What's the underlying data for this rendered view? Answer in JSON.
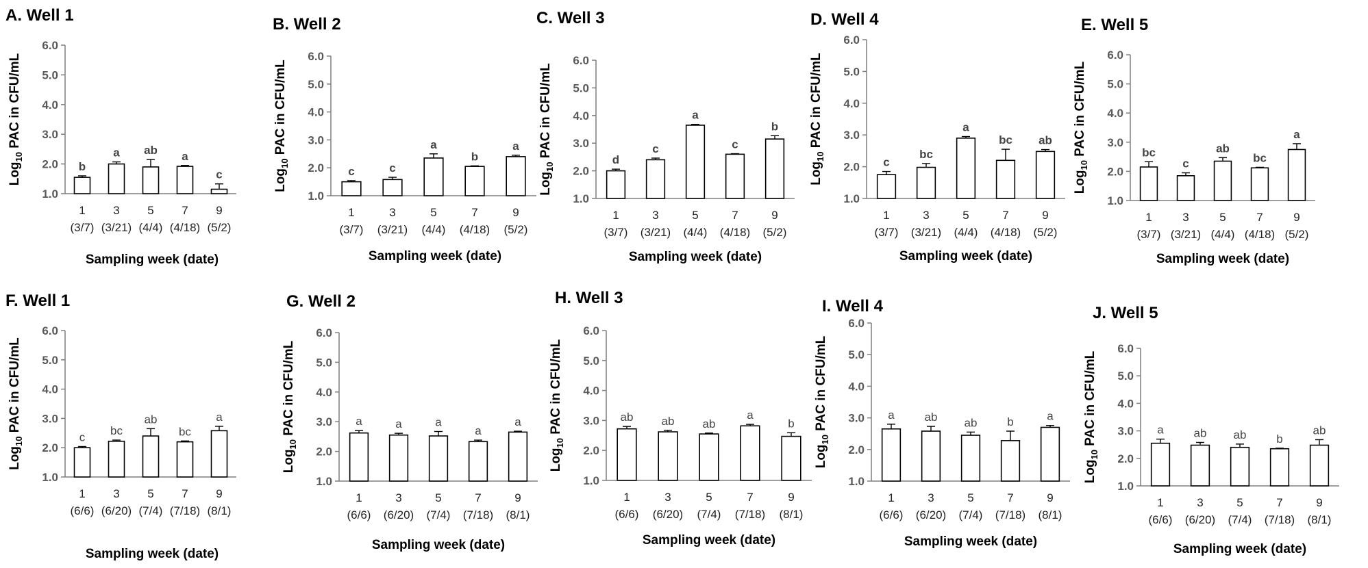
{
  "chart_data": [
    {
      "panel": "A",
      "title": "A. Well 1",
      "type": "bar",
      "categories": [
        "1",
        "3",
        "5",
        "7",
        "9"
      ],
      "dates": [
        "(3/7)",
        "(3/21)",
        "(4/4)",
        "(4/18)",
        "(5/2)"
      ],
      "values": [
        1.55,
        2.0,
        1.9,
        1.92,
        1.15
      ],
      "errors": [
        0.05,
        0.07,
        0.25,
        0.03,
        0.18
      ],
      "letters": [
        "b",
        "a",
        "ab",
        "a",
        "c"
      ],
      "xlabel": "Sampling week (date)",
      "ylabel": "Log10 PAC in CFU/mL",
      "ylim": [
        1.0,
        6.0
      ],
      "yticks": [
        "1.0",
        "2.0",
        "3.0",
        "4.0",
        "5.0",
        "6.0"
      ]
    },
    {
      "panel": "B",
      "title": "B. Well 2",
      "type": "bar",
      "categories": [
        "1",
        "3",
        "5",
        "7",
        "9"
      ],
      "dates": [
        "(3/7)",
        "(3/21)",
        "(4/4)",
        "(4/18)",
        "(5/2)"
      ],
      "values": [
        1.5,
        1.58,
        2.35,
        2.05,
        2.4
      ],
      "errors": [
        0.04,
        0.08,
        0.15,
        0.02,
        0.05
      ],
      "letters": [
        "c",
        "c",
        "a",
        "b",
        "a"
      ],
      "xlabel": "Sampling week (date)",
      "ylabel": "Log10 PAC in CFU/mL",
      "ylim": [
        1.0,
        6.0
      ],
      "yticks": [
        "1.0",
        "2.0",
        "3.0",
        "4.0",
        "5.0",
        "6.0"
      ]
    },
    {
      "panel": "C",
      "title": "C. Well 3",
      "type": "bar",
      "categories": [
        "1",
        "3",
        "5",
        "7",
        "9"
      ],
      "dates": [
        "(3/7)",
        "(3/21)",
        "(4/4)",
        "(4/18)",
        "(5/2)"
      ],
      "values": [
        2.0,
        2.4,
        3.65,
        2.6,
        3.15
      ],
      "errors": [
        0.06,
        0.06,
        0.03,
        0.02,
        0.12
      ],
      "letters": [
        "d",
        "c",
        "a",
        "c",
        "b"
      ],
      "xlabel": "Sampling week (date)",
      "ylabel": "Log10 PAC in CFU/mL",
      "ylim": [
        1.0,
        6.0
      ],
      "yticks": [
        "1.0",
        "2.0",
        "3.0",
        "4.0",
        "5.0",
        "6.0"
      ]
    },
    {
      "panel": "D",
      "title": "D. Well 4",
      "type": "bar",
      "categories": [
        "1",
        "3",
        "5",
        "7",
        "9"
      ],
      "dates": [
        "(3/7)",
        "(3/21)",
        "(4/4)",
        "(4/18)",
        "(5/2)"
      ],
      "values": [
        1.75,
        1.98,
        2.9,
        2.2,
        2.48
      ],
      "errors": [
        0.1,
        0.12,
        0.05,
        0.35,
        0.06
      ],
      "letters": [
        "c",
        "bc",
        "a",
        "bc",
        "ab"
      ],
      "xlabel": "Sampling week (date)",
      "ylabel": "Log10 PAC in CFU/mL",
      "ylim": [
        1.0,
        6.0
      ],
      "yticks": [
        "1.0",
        "2.0",
        "3.0",
        "4.0",
        "5.0",
        "6.0"
      ]
    },
    {
      "panel": "E",
      "title": "E. Well 5",
      "type": "bar",
      "categories": [
        "1",
        "3",
        "5",
        "7",
        "9"
      ],
      "dates": [
        "(3/7)",
        "(3/21)",
        "(4/4)",
        "(4/18)",
        "(5/2)"
      ],
      "values": [
        2.15,
        1.85,
        2.35,
        2.12,
        2.75
      ],
      "errors": [
        0.18,
        0.1,
        0.12,
        0.02,
        0.2
      ],
      "letters": [
        "bc",
        "c",
        "ab",
        "bc",
        "a"
      ],
      "xlabel": "Sampling week (date)",
      "ylabel": "Log10 PAC in CFU/mL",
      "ylim": [
        1.0,
        6.0
      ],
      "yticks": [
        "1.0",
        "2.0",
        "3.0",
        "4.0",
        "5.0",
        "6.0"
      ]
    },
    {
      "panel": "F",
      "title": "F. Well 1",
      "type": "bar",
      "categories": [
        "1",
        "3",
        "5",
        "7",
        "9"
      ],
      "dates": [
        "(6/6)",
        "(6/20)",
        "(7/4)",
        "(7/18)",
        "(8/1)"
      ],
      "values": [
        2.0,
        2.22,
        2.4,
        2.2,
        2.58
      ],
      "errors": [
        0.04,
        0.04,
        0.25,
        0.03,
        0.15
      ],
      "letters": [
        "c",
        "bc",
        "ab",
        "bc",
        "a"
      ],
      "xlabel": "Sampling week (date)",
      "ylabel": "Log10 PAC in CFU/mL",
      "ylim": [
        1.0,
        6.0
      ],
      "yticks": [
        "1.0",
        "2.0",
        "3.0",
        "4.0",
        "5.0",
        "6.0"
      ]
    },
    {
      "panel": "G",
      "title": "G. Well 2",
      "type": "bar",
      "categories": [
        "1",
        "3",
        "5",
        "7",
        "9"
      ],
      "dates": [
        "(6/6)",
        "(6/20)",
        "(7/4)",
        "(7/18)",
        "(8/1)"
      ],
      "values": [
        2.62,
        2.55,
        2.52,
        2.33,
        2.65
      ],
      "errors": [
        0.08,
        0.06,
        0.15,
        0.05,
        0.03
      ],
      "letters": [
        "a",
        "a",
        "a",
        "a",
        "a"
      ],
      "xlabel": "Sampling week (date)",
      "ylabel": "Log10 PAC in CFU/mL",
      "ylim": [
        1.0,
        6.0
      ],
      "yticks": [
        "1.0",
        "2.0",
        "3.0",
        "4.0",
        "5.0",
        "6.0"
      ]
    },
    {
      "panel": "H",
      "title": "H. Well 3",
      "type": "bar",
      "categories": [
        "1",
        "3",
        "5",
        "7",
        "9"
      ],
      "dates": [
        "(6/6)",
        "(6/20)",
        "(7/4)",
        "(7/18)",
        "(8/1)"
      ],
      "values": [
        2.72,
        2.62,
        2.55,
        2.82,
        2.47
      ],
      "errors": [
        0.08,
        0.05,
        0.03,
        0.05,
        0.12
      ],
      "letters": [
        "ab",
        "ab",
        "ab",
        "a",
        "b"
      ],
      "xlabel": "Sampling week (date)",
      "ylabel": "Log10 PAC in CFU/mL",
      "ylim": [
        1.0,
        6.0
      ],
      "yticks": [
        "1.0",
        "2.0",
        "3.0",
        "4.0",
        "5.0",
        "6.0"
      ]
    },
    {
      "panel": "I",
      "title": "I. Well 4",
      "type": "bar",
      "categories": [
        "1",
        "3",
        "5",
        "7",
        "9"
      ],
      "dates": [
        "(6/6)",
        "(6/20)",
        "(7/4)",
        "(7/18)",
        "(8/1)"
      ],
      "values": [
        2.65,
        2.58,
        2.45,
        2.28,
        2.7
      ],
      "errors": [
        0.15,
        0.15,
        0.1,
        0.3,
        0.06
      ],
      "letters": [
        "a",
        "ab",
        "ab",
        "b",
        "a"
      ],
      "xlabel": "Sampling week (date)",
      "ylabel": "Log10 PAC in CFU/mL",
      "ylim": [
        1.0,
        6.0
      ],
      "yticks": [
        "1.0",
        "2.0",
        "3.0",
        "4.0",
        "5.0",
        "6.0"
      ]
    },
    {
      "panel": "J",
      "title": "J. Well 5",
      "type": "bar",
      "categories": [
        "1",
        "3",
        "5",
        "7",
        "9"
      ],
      "dates": [
        "(6/6)",
        "(6/20)",
        "(7/4)",
        "(7/18)",
        "(8/1)"
      ],
      "values": [
        2.55,
        2.48,
        2.4,
        2.35,
        2.48
      ],
      "errors": [
        0.15,
        0.1,
        0.12,
        0.02,
        0.2
      ],
      "letters": [
        "a",
        "ab",
        "ab",
        "b",
        "ab"
      ],
      "xlabel": "Sampling week (date)",
      "ylabel": "Log10 PAC in CFU/mL",
      "ylim": [
        1.0,
        6.0
      ],
      "yticks": [
        "1.0",
        "2.0",
        "3.0",
        "4.0",
        "5.0",
        "6.0"
      ]
    }
  ]
}
